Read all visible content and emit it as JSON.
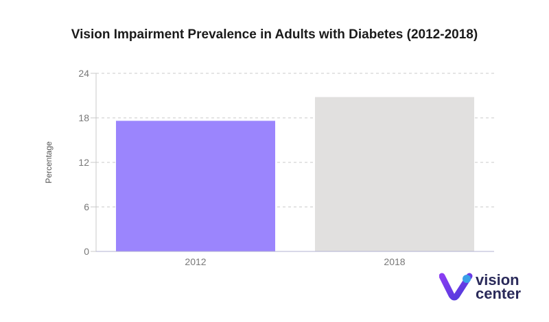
{
  "chart_data": {
    "type": "bar",
    "title": "Vision Impairment Prevalence in Adults with Diabetes (2012-2018)",
    "ylabel": "Percentage",
    "xlabel": "",
    "categories": [
      "2012",
      "2018"
    ],
    "values": [
      17.6,
      20.8
    ],
    "ylim": [
      0,
      24
    ],
    "yticks": [
      0,
      6,
      12,
      18,
      24
    ],
    "bar_colors": [
      "#9b85fd",
      "#e1e0df"
    ],
    "grid": true
  },
  "logo": {
    "line1": "vision",
    "line2": "center",
    "accent": "#6c3ef0"
  }
}
